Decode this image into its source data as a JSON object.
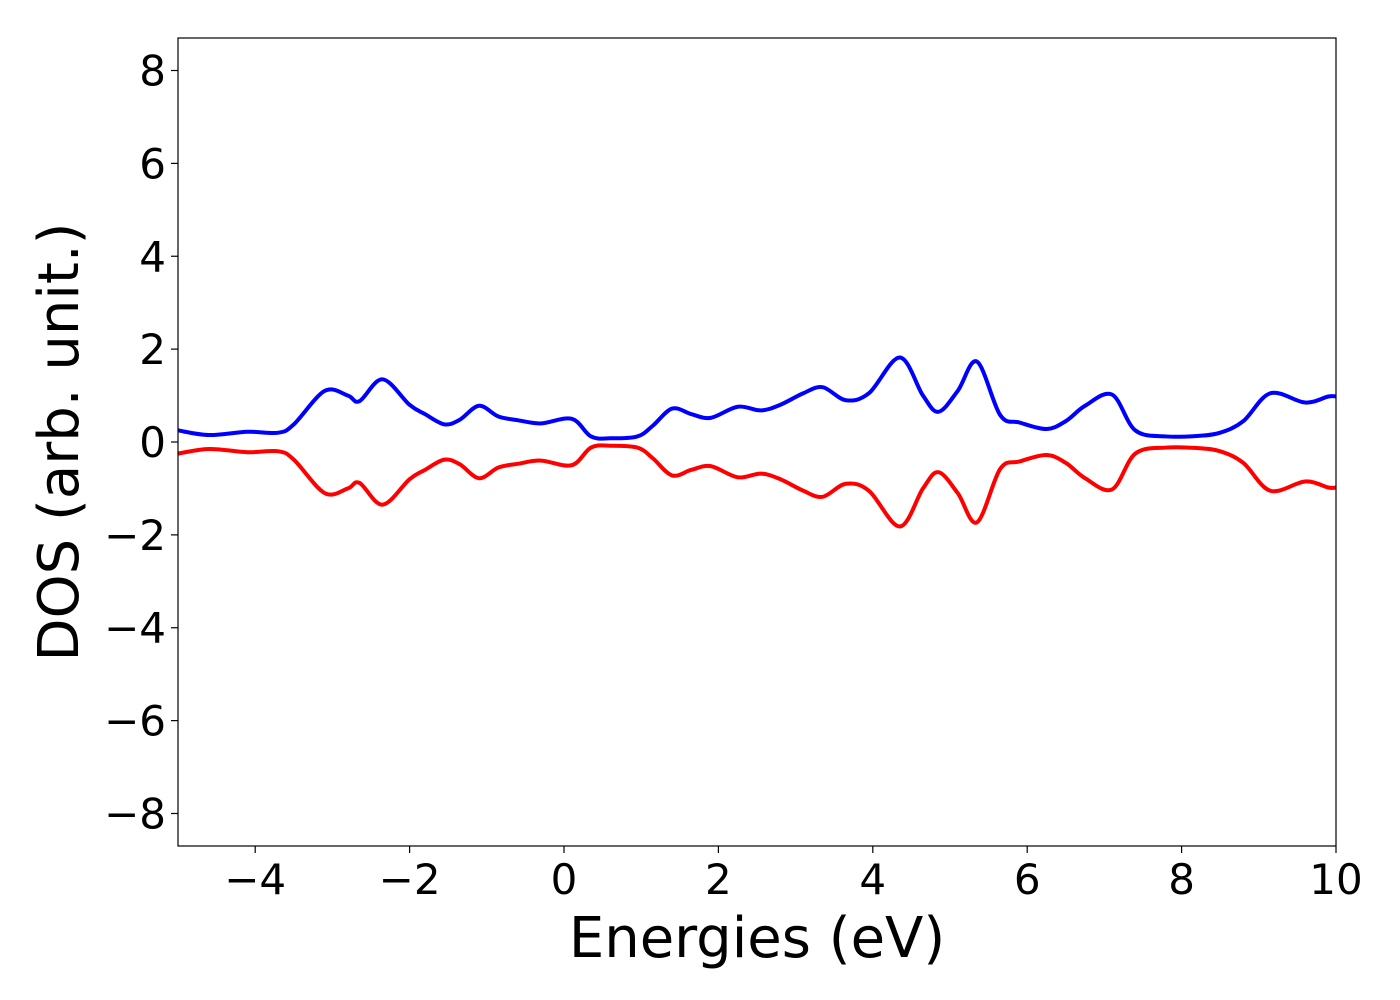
{
  "chart_data": {
    "type": "line",
    "title": "",
    "xlabel": "Energies (eV)",
    "ylabel": "DOS (arb. unit.)",
    "xlim": [
      -5,
      10
    ],
    "ylim": [
      -8.7,
      8.7
    ],
    "xticks": [
      -4,
      -2,
      0,
      2,
      4,
      6,
      8,
      10
    ],
    "xtick_labels": [
      "−4",
      "−2",
      "0",
      "2",
      "4",
      "6",
      "8",
      "10"
    ],
    "yticks": [
      8,
      6,
      4,
      2,
      0,
      -2,
      -4,
      -6,
      -8
    ],
    "ytick_labels": [
      "8",
      "6",
      "4",
      "2",
      "0",
      "−2",
      "−4",
      "−6",
      "−8"
    ],
    "grid": false,
    "legend": "none",
    "series": [
      {
        "color": "#0000ff",
        "x": [
          -5.0,
          -4.6,
          -4.1,
          -3.7,
          -3.5,
          -3.1,
          -2.8,
          -2.65,
          -2.35,
          -2.0,
          -1.8,
          -1.55,
          -1.35,
          -1.1,
          -0.85,
          -0.6,
          -0.3,
          0.1,
          0.35,
          0.6,
          0.95,
          1.15,
          1.4,
          1.65,
          1.9,
          2.25,
          2.55,
          2.8,
          3.1,
          3.35,
          3.65,
          3.95,
          4.35,
          4.65,
          4.85,
          5.1,
          5.35,
          5.65,
          5.9,
          6.25,
          6.5,
          6.75,
          7.1,
          7.4,
          7.8,
          8.2,
          8.5,
          8.8,
          9.15,
          9.6,
          9.9,
          10.0
        ],
        "y": [
          0.25,
          0.15,
          0.22,
          0.2,
          0.38,
          1.1,
          1.0,
          0.88,
          1.35,
          0.8,
          0.6,
          0.38,
          0.48,
          0.78,
          0.55,
          0.47,
          0.4,
          0.5,
          0.12,
          0.08,
          0.12,
          0.35,
          0.72,
          0.6,
          0.52,
          0.76,
          0.68,
          0.8,
          1.05,
          1.18,
          0.9,
          1.05,
          1.82,
          1.0,
          0.65,
          1.1,
          1.73,
          0.58,
          0.42,
          0.28,
          0.45,
          0.78,
          1.02,
          0.25,
          0.12,
          0.13,
          0.2,
          0.45,
          1.05,
          0.85,
          0.98,
          0.98
        ]
      },
      {
        "color": "#ff0000",
        "x": [
          -5.0,
          -4.6,
          -4.1,
          -3.7,
          -3.5,
          -3.1,
          -2.8,
          -2.65,
          -2.35,
          -2.0,
          -1.8,
          -1.55,
          -1.35,
          -1.1,
          -0.85,
          -0.6,
          -0.3,
          0.1,
          0.35,
          0.6,
          0.95,
          1.15,
          1.4,
          1.65,
          1.9,
          2.25,
          2.55,
          2.8,
          3.1,
          3.35,
          3.65,
          3.95,
          4.35,
          4.65,
          4.85,
          5.1,
          5.35,
          5.65,
          5.9,
          6.25,
          6.5,
          6.75,
          7.1,
          7.4,
          7.8,
          8.2,
          8.5,
          8.8,
          9.15,
          9.6,
          9.9,
          10.0
        ],
        "y": [
          -0.25,
          -0.15,
          -0.22,
          -0.2,
          -0.38,
          -1.1,
          -1.0,
          -0.88,
          -1.35,
          -0.8,
          -0.6,
          -0.38,
          -0.48,
          -0.78,
          -0.55,
          -0.47,
          -0.4,
          -0.5,
          -0.12,
          -0.08,
          -0.12,
          -0.35,
          -0.72,
          -0.6,
          -0.52,
          -0.76,
          -0.68,
          -0.8,
          -1.05,
          -1.18,
          -0.9,
          -1.05,
          -1.82,
          -1.0,
          -0.65,
          -1.1,
          -1.73,
          -0.58,
          -0.42,
          -0.28,
          -0.45,
          -0.78,
          -1.02,
          -0.25,
          -0.12,
          -0.13,
          -0.2,
          -0.45,
          -1.05,
          -0.85,
          -0.98,
          -0.98
        ]
      }
    ]
  }
}
